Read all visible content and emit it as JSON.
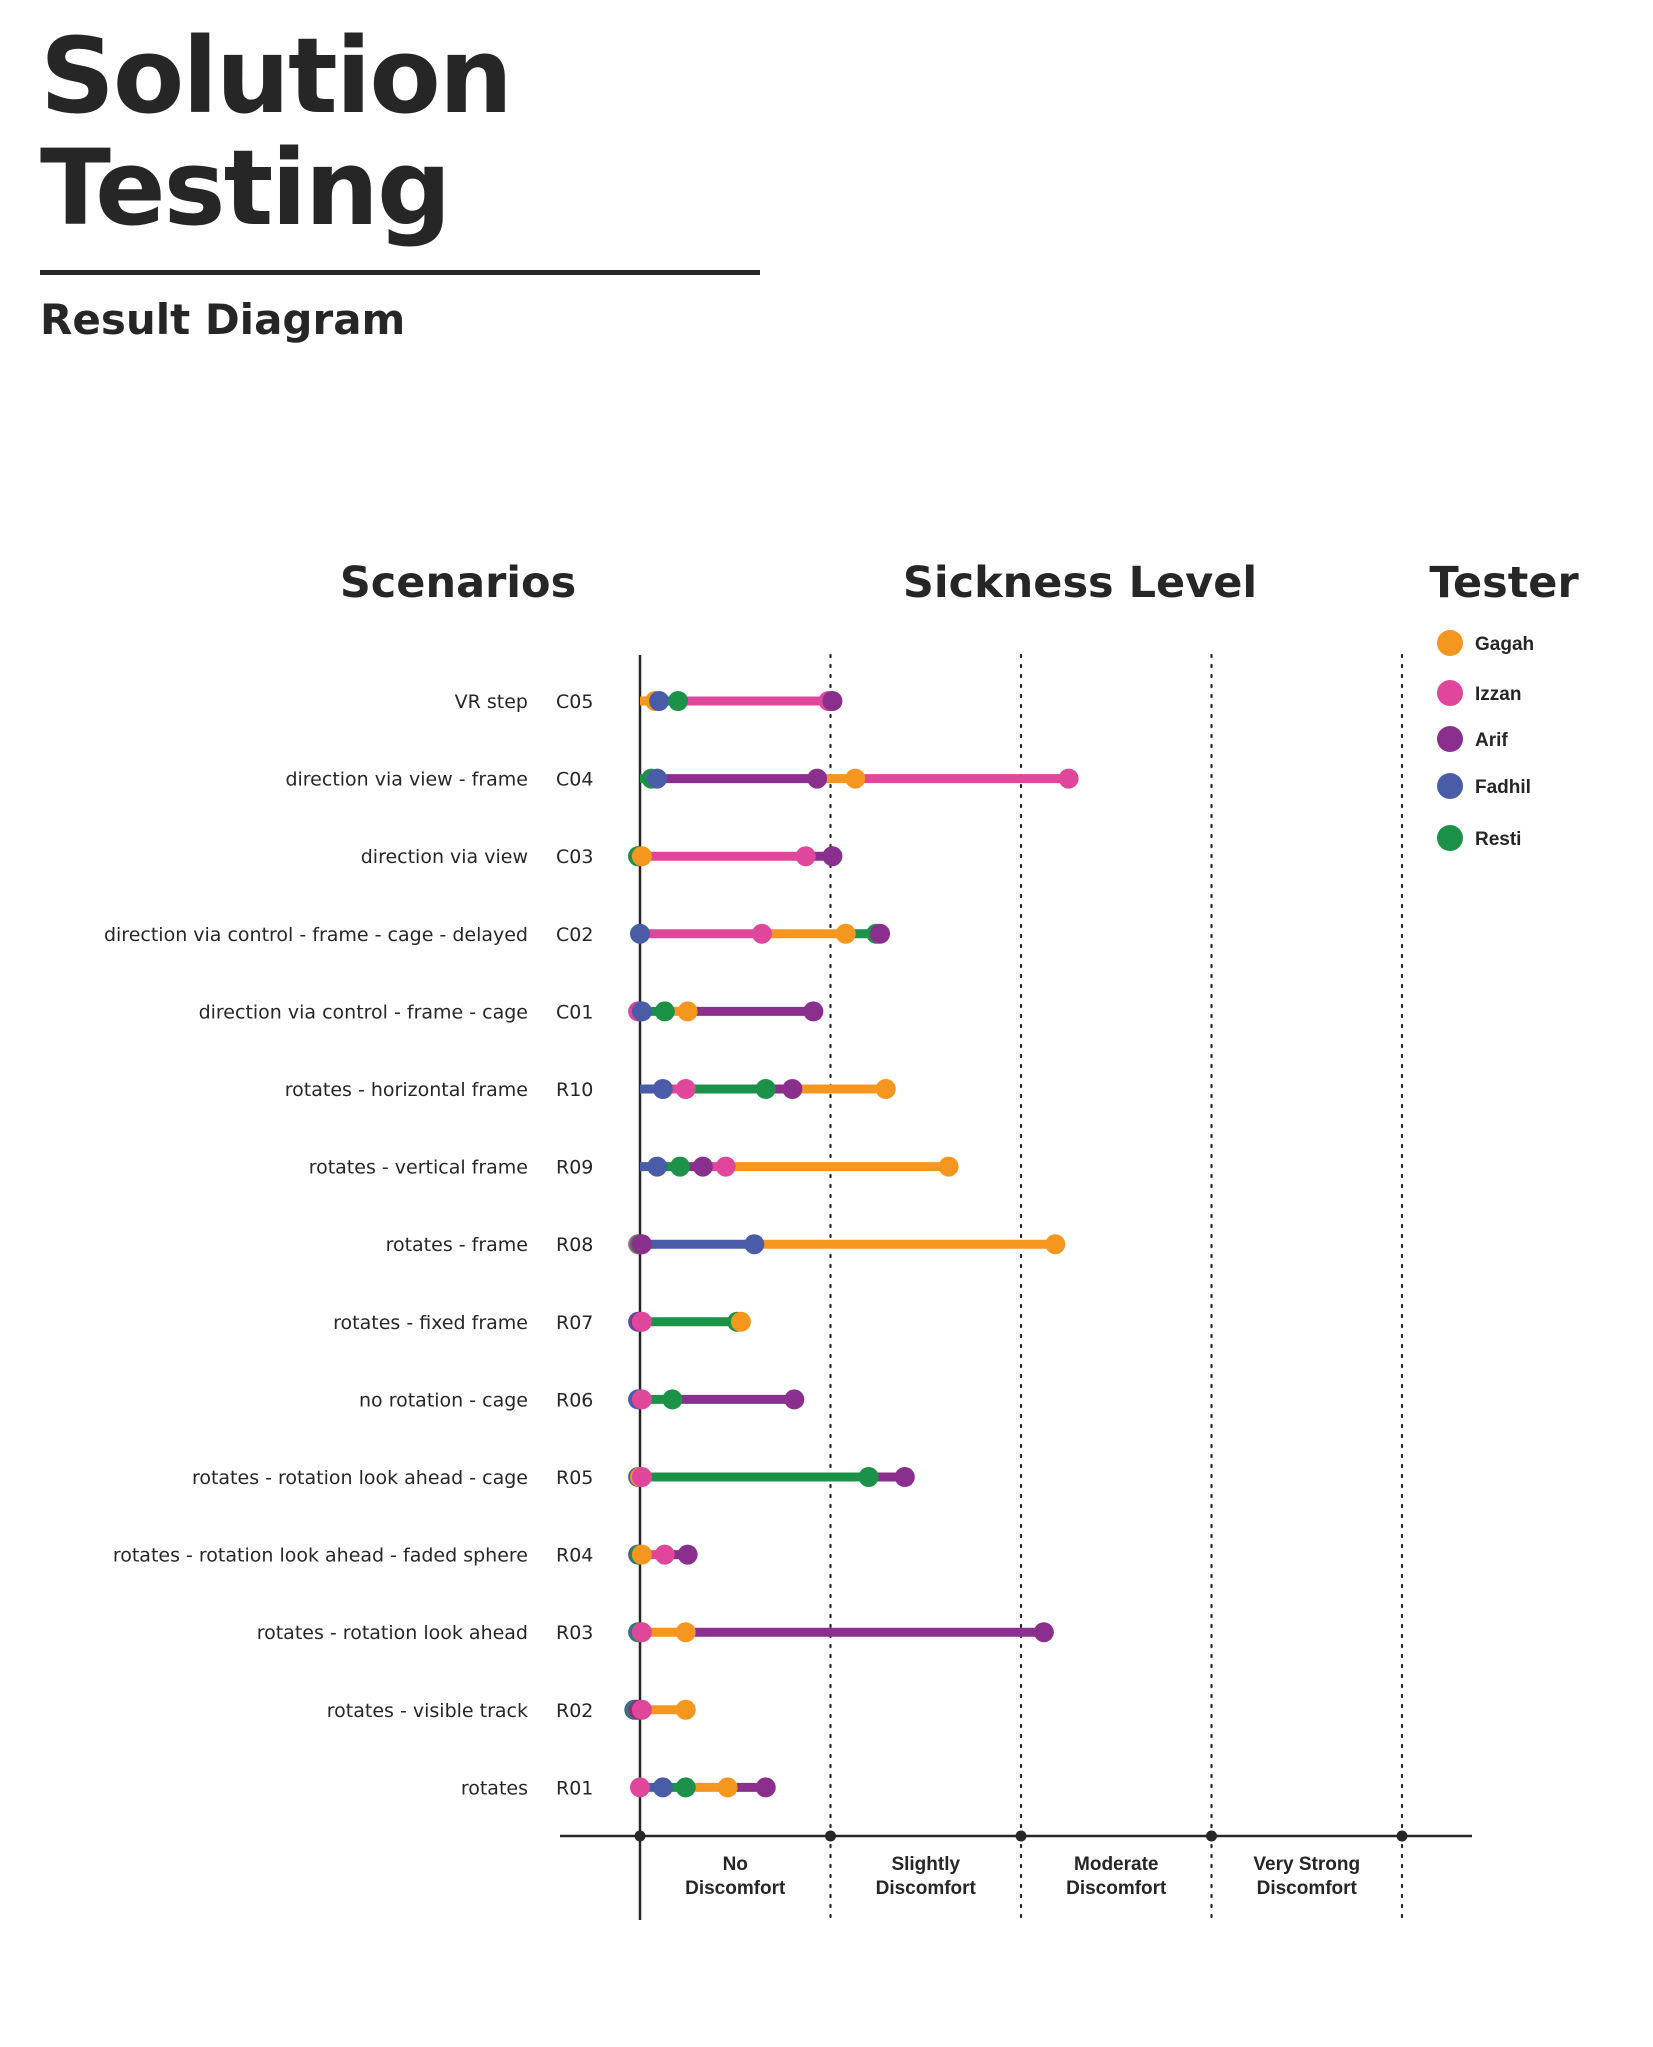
{
  "header": {
    "title_line1": "Solution",
    "title_line2": "Testing",
    "subtitle": "Result Diagram"
  },
  "headings": {
    "scenarios": "Scenarios",
    "sickness": "Sickness Level",
    "tester": "Tester"
  },
  "colors": {
    "Gagah": "#f5961e",
    "Izzan": "#e0479a",
    "Arif": "#8b2f8e",
    "Fadhil": "#4a5ca8",
    "Resti": "#1c9148",
    "axis": "#262626"
  },
  "chart_data": {
    "type": "dot-range",
    "x_axis": {
      "range": [
        0,
        4
      ],
      "levels": [
        {
          "line1": "No",
          "line2": "Discomfort"
        },
        {
          "line1": "Slightly",
          "line2": "Discomfort"
        },
        {
          "line1": "Moderate",
          "line2": "Discomfort"
        },
        {
          "line1": "Very Strong",
          "line2": "Discomfort"
        }
      ]
    },
    "legend": {
      "placement": "right",
      "entries": [
        "Gagah",
        "Izzan",
        "Arif",
        "Fadhil",
        "Resti"
      ]
    },
    "rows": [
      {
        "code": "C05",
        "scenario": "VR step",
        "values": {
          "Gagah": 0.08,
          "Fadhil": 0.1,
          "Resti": 0.2,
          "Izzan": 0.99,
          "Arif": 1.01
        }
      },
      {
        "code": "C04",
        "scenario": "direction via view - frame",
        "values": {
          "Resti": 0.06,
          "Fadhil": 0.09,
          "Arif": 0.93,
          "Gagah": 1.13,
          "Izzan": 2.25
        }
      },
      {
        "code": "C03",
        "scenario": "direction via view",
        "values": {
          "Fadhil": -0.01,
          "Resti": -0.01,
          "Gagah": 0.01,
          "Izzan": 0.87,
          "Arif": 1.01
        }
      },
      {
        "code": "C02",
        "scenario": "direction via control - frame - cage -  delayed",
        "values": {
          "Fadhil": 0.0,
          "Izzan": 0.64,
          "Gagah": 1.08,
          "Resti": 1.24,
          "Arif": 1.26
        }
      },
      {
        "code": "C01",
        "scenario": "direction via control - frame - cage",
        "values": {
          "Izzan": -0.01,
          "Fadhil": 0.01,
          "Resti": 0.13,
          "Gagah": 0.25,
          "Arif": 0.91
        }
      },
      {
        "code": "R10",
        "scenario": "rotates - horizontal frame",
        "values": {
          "Fadhil": 0.12,
          "Izzan": 0.24,
          "Resti": 0.66,
          "Arif": 0.8,
          "Gagah": 1.29
        }
      },
      {
        "code": "R09",
        "scenario": "rotates - vertical frame",
        "values": {
          "Fadhil": 0.09,
          "Resti": 0.21,
          "Arif": 0.33,
          "Izzan": 0.45,
          "Gagah": 1.62
        }
      },
      {
        "code": "R08",
        "scenario": "rotates - frame",
        "values": {
          "Izzan": -0.01,
          "Resti": 0.0,
          "Arif": 0.01,
          "Fadhil": 0.6,
          "Gagah": 2.18
        }
      },
      {
        "code": "R07",
        "scenario": "rotates - fixed frame",
        "values": {
          "Fadhil": -0.01,
          "Arif": 0.0,
          "Izzan": 0.01,
          "Resti": 0.51,
          "Gagah": 0.53
        }
      },
      {
        "code": "R06",
        "scenario": "no rotation - cage",
        "values": {
          "Fadhil": -0.01,
          "Izzan": 0.01,
          "Resti": 0.17,
          "Arif": 0.81
        }
      },
      {
        "code": "R05",
        "scenario": "rotates - rotation look ahead - cage",
        "values": {
          "Fadhil": -0.01,
          "Gagah": 0.0,
          "Izzan": 0.01,
          "Resti": 1.2,
          "Arif": 1.39
        }
      },
      {
        "code": "R04",
        "scenario": "rotates - rotation look ahead - faded sphere",
        "values": {
          "Fadhil": -0.01,
          "Resti": 0.0,
          "Gagah": 0.01,
          "Izzan": 0.13,
          "Arif": 0.25
        }
      },
      {
        "code": "R03",
        "scenario": "rotates - rotation look ahead",
        "values": {
          "Fadhil": -0.01,
          "Resti": 0.0,
          "Izzan": 0.01,
          "Gagah": 0.24,
          "Arif": 2.12
        }
      },
      {
        "code": "R02",
        "scenario": "rotates - visible track",
        "values": {
          "Fadhil": -0.03,
          "Resti": -0.02,
          "Arif": -0.01,
          "Izzan": 0.01,
          "Gagah": 0.24
        }
      },
      {
        "code": "R01",
        "scenario": "rotates",
        "values": {
          "Izzan": 0.0,
          "Fadhil": 0.12,
          "Resti": 0.24,
          "Gagah": 0.46,
          "Arif": 0.66
        }
      }
    ]
  }
}
